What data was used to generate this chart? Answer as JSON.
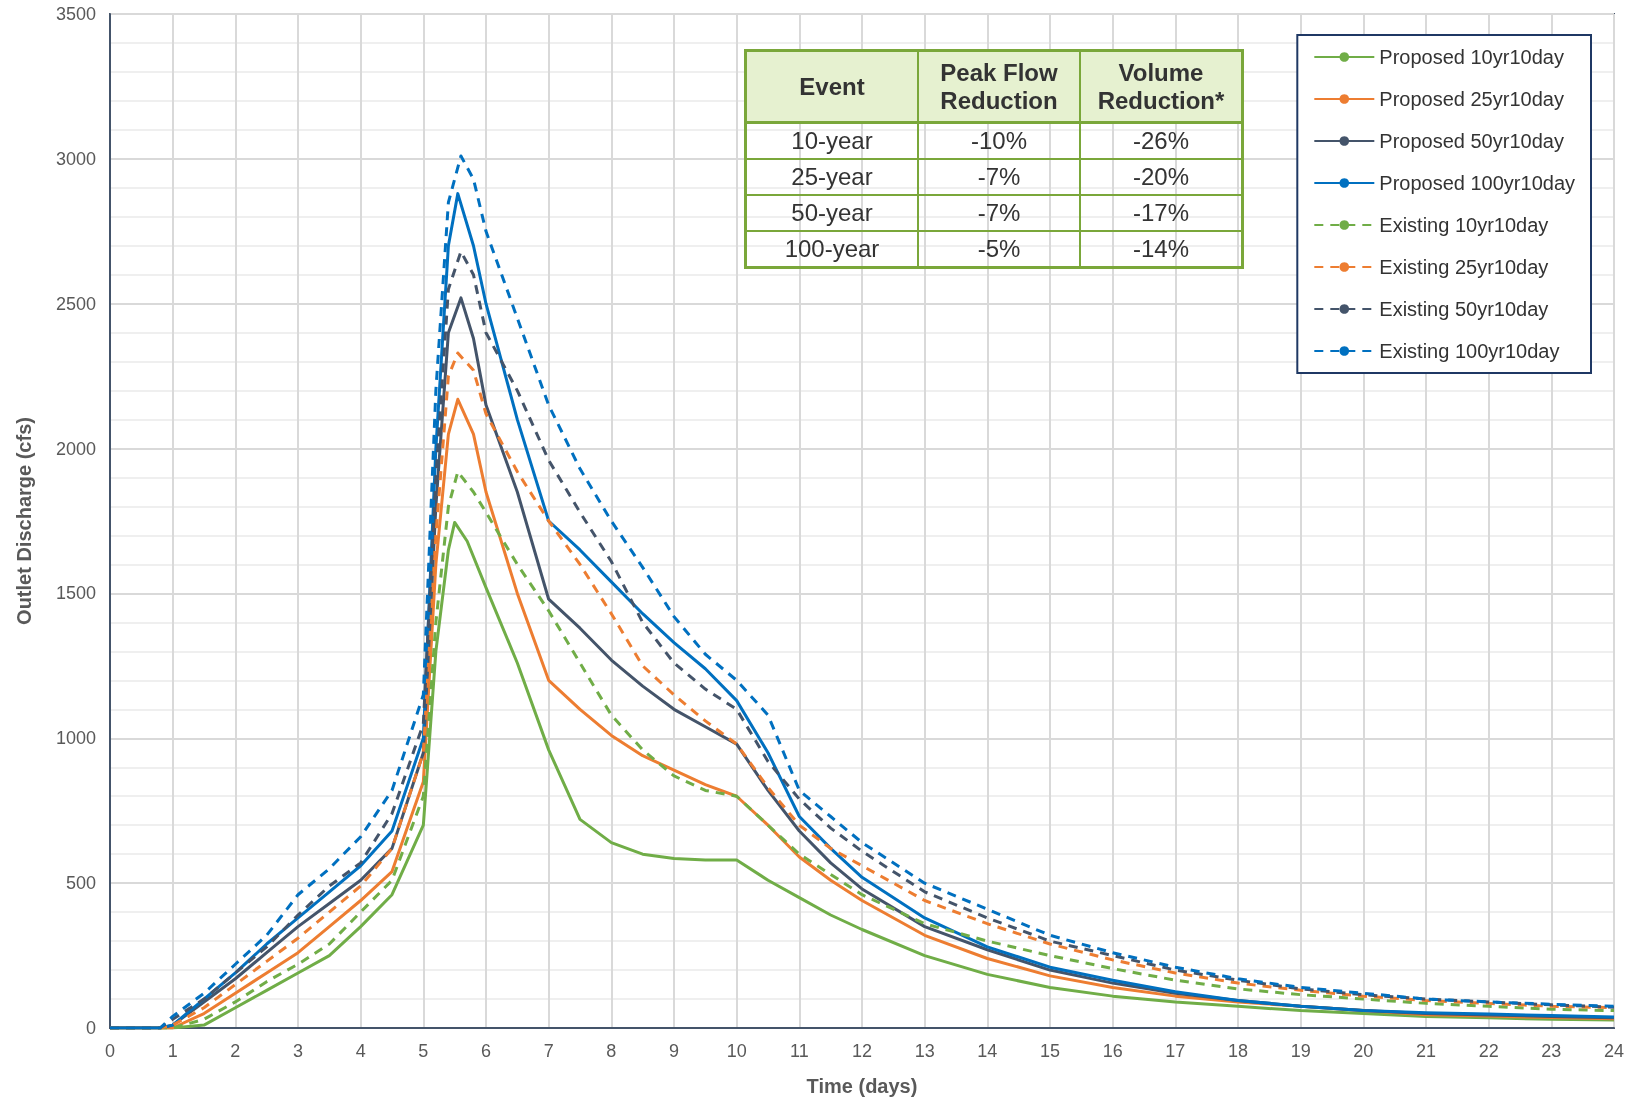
{
  "chart_data": {
    "type": "line",
    "xlabel": "Time (days)",
    "ylabel": "Outlet Discharge (cfs)",
    "xlim": [
      0,
      24
    ],
    "xticks": [
      0,
      1,
      2,
      3,
      4,
      5,
      6,
      7,
      8,
      9,
      10,
      11,
      12,
      13,
      14,
      15,
      16,
      17,
      18,
      19,
      20,
      21,
      22,
      23,
      24
    ],
    "ylim": [
      0,
      3500
    ],
    "yticks": [
      0,
      500,
      1000,
      1500,
      2000,
      2500,
      3000,
      3500
    ],
    "grid": true,
    "legend": "top right",
    "marker": "none",
    "annotations": [
      "Event",
      "Peak Flow Reduction",
      "Volume Reduction*",
      "10-year",
      "-10%",
      "-26%",
      "25-year",
      "-7%",
      "-20%",
      "50-year",
      "-7%",
      "-17%",
      "100-year",
      "-5%",
      "-14%"
    ],
    "series": [
      {
        "name": "Proposed 10yr10day",
        "color": "#70ad47",
        "line_style": "solid",
        "x": [
          0,
          0.8,
          1,
          1.5,
          2,
          2.5,
          3,
          3.5,
          4,
          4.5,
          5,
          5.2,
          5.4,
          5.5,
          5.7,
          6,
          6.5,
          7,
          7.5,
          8,
          8.5,
          9,
          9.5,
          10,
          10.5,
          11,
          11.5,
          12,
          13,
          14,
          15,
          16,
          17,
          18,
          19,
          20,
          21,
          22,
          23,
          24
        ],
        "values": [
          0,
          0,
          0,
          10,
          70,
          130,
          190,
          250,
          350,
          460,
          700,
          1300,
          1650,
          1745,
          1680,
          1520,
          1260,
          960,
          720,
          640,
          600,
          585,
          580,
          580,
          510,
          450,
          390,
          340,
          250,
          185,
          140,
          110,
          90,
          75,
          60,
          50,
          40,
          35,
          30,
          28
        ]
      },
      {
        "name": "Proposed 25yr10day",
        "color": "#ed7d31",
        "line_style": "solid",
        "x": [
          0,
          0.8,
          1,
          1.5,
          2,
          2.5,
          3,
          3.5,
          4,
          4.5,
          5,
          5.2,
          5.4,
          5.55,
          5.8,
          6,
          6.5,
          7,
          7.5,
          8,
          8.5,
          9,
          9.5,
          10,
          10.5,
          11,
          11.5,
          12,
          13,
          14,
          15,
          16,
          17,
          18,
          19,
          20,
          21,
          22,
          23,
          24
        ],
        "values": [
          0,
          0,
          0,
          50,
          120,
          190,
          260,
          350,
          440,
          540,
          850,
          1600,
          2050,
          2170,
          2050,
          1850,
          1500,
          1200,
          1100,
          1010,
          940,
          890,
          840,
          800,
          700,
          590,
          510,
          440,
          320,
          240,
          180,
          140,
          110,
          90,
          75,
          60,
          46,
          41,
          36,
          32
        ]
      },
      {
        "name": "Proposed 50yr10day",
        "color": "#44546a",
        "line_style": "solid",
        "x": [
          0,
          0.8,
          1,
          1.5,
          2,
          2.5,
          3,
          3.5,
          4,
          4.5,
          5,
          5.2,
          5.4,
          5.6,
          5.8,
          6,
          6.5,
          7,
          7.5,
          8,
          8.5,
          9,
          9.5,
          10,
          10.5,
          11,
          11.5,
          12,
          13,
          14,
          15,
          16,
          17,
          18,
          19,
          20,
          21,
          22,
          23,
          24
        ],
        "values": [
          0,
          0,
          10,
          90,
          170,
          260,
          350,
          430,
          510,
          620,
          950,
          1800,
          2400,
          2520,
          2380,
          2150,
          1850,
          1480,
          1380,
          1270,
          1180,
          1100,
          1040,
          980,
          820,
          680,
          570,
          480,
          350,
          270,
          200,
          155,
          120,
          95,
          75,
          60,
          50,
          45,
          40,
          35
        ]
      },
      {
        "name": "Proposed 100yr10day",
        "color": "#0070c0",
        "line_style": "solid",
        "x": [
          0,
          0.8,
          1,
          1.5,
          2,
          2.5,
          3,
          3.5,
          4,
          4.5,
          5,
          5.2,
          5.4,
          5.55,
          5.8,
          6,
          6.5,
          7,
          7.5,
          8,
          8.5,
          9,
          9.5,
          10,
          10.5,
          11,
          11.5,
          12,
          13,
          14,
          15,
          16,
          17,
          18,
          19,
          20,
          21,
          22,
          23,
          24
        ],
        "values": [
          0,
          0,
          10,
          100,
          190,
          290,
          380,
          470,
          560,
          680,
          1000,
          2000,
          2700,
          2880,
          2700,
          2500,
          2100,
          1750,
          1650,
          1540,
          1430,
          1330,
          1240,
          1130,
          950,
          730,
          620,
          520,
          380,
          280,
          210,
          165,
          125,
          95,
          75,
          60,
          53,
          48,
          43,
          38
        ]
      },
      {
        "name": "Existing 10yr10day",
        "color": "#70ad47",
        "line_style": "dashed",
        "x": [
          0,
          0.8,
          1,
          1.5,
          2,
          2.5,
          3,
          3.5,
          4,
          4.5,
          5,
          5.2,
          5.4,
          5.55,
          5.8,
          6,
          6.5,
          7,
          7.5,
          8,
          8.5,
          9,
          9.5,
          10,
          10.5,
          11,
          11.5,
          12,
          13,
          14,
          15,
          16,
          17,
          18,
          19,
          20,
          21,
          22,
          23,
          24
        ],
        "values": [
          0,
          0,
          0,
          30,
          90,
          160,
          220,
          290,
          400,
          510,
          800,
          1400,
          1800,
          1920,
          1850,
          1780,
          1600,
          1440,
          1260,
          1080,
          960,
          870,
          820,
          800,
          700,
          600,
          530,
          460,
          360,
          300,
          250,
          205,
          165,
          135,
          115,
          100,
          85,
          75,
          65,
          60
        ]
      },
      {
        "name": "Existing 25yr10day",
        "color": "#ed7d31",
        "line_style": "dashed",
        "x": [
          0,
          0.8,
          1,
          1.5,
          2,
          2.5,
          3,
          3.5,
          4,
          4.5,
          5,
          5.2,
          5.4,
          5.55,
          5.8,
          6,
          6.5,
          7,
          7.5,
          8,
          8.5,
          9,
          9.5,
          10,
          10.5,
          11,
          11.5,
          12,
          13,
          14,
          15,
          16,
          17,
          18,
          19,
          20,
          21,
          22,
          23,
          24
        ],
        "values": [
          0,
          0,
          10,
          70,
          150,
          230,
          310,
          400,
          490,
          620,
          950,
          1700,
          2250,
          2330,
          2270,
          2120,
          1920,
          1750,
          1600,
          1430,
          1250,
          1150,
          1060,
          980,
          830,
          700,
          620,
          560,
          440,
          360,
          290,
          235,
          190,
          155,
          130,
          110,
          95,
          85,
          75,
          70
        ]
      },
      {
        "name": "Existing 50yr10day",
        "color": "#44546a",
        "line_style": "dashed",
        "x": [
          0,
          0.8,
          1,
          1.5,
          2,
          2.5,
          3,
          3.5,
          4,
          4.5,
          5,
          5.2,
          5.4,
          5.6,
          5.8,
          6,
          6.5,
          7,
          7.5,
          8,
          8.5,
          9,
          9.5,
          10,
          10.5,
          11,
          11.5,
          12,
          13,
          14,
          15,
          16,
          17,
          18,
          19,
          20,
          21,
          22,
          23,
          24
        ],
        "values": [
          0,
          0,
          30,
          100,
          190,
          280,
          390,
          490,
          570,
          740,
          1050,
          1900,
          2550,
          2680,
          2600,
          2400,
          2200,
          1960,
          1780,
          1610,
          1400,
          1260,
          1170,
          1100,
          920,
          790,
          690,
          610,
          470,
          380,
          300,
          250,
          200,
          165,
          135,
          115,
          100,
          90,
          80,
          72
        ]
      },
      {
        "name": "Existing 100yr10day",
        "color": "#0070c0",
        "line_style": "dashed",
        "x": [
          0,
          0.8,
          1,
          1.5,
          2,
          2.5,
          3,
          3.5,
          4,
          4.5,
          5,
          5.2,
          5.4,
          5.6,
          5.8,
          6,
          6.5,
          7,
          7.5,
          8,
          8.5,
          9,
          9.5,
          10,
          10.5,
          11,
          11.5,
          12,
          13,
          14,
          15,
          16,
          17,
          18,
          19,
          20,
          21,
          22,
          23,
          24
        ],
        "values": [
          0,
          0,
          40,
          120,
          220,
          320,
          460,
          550,
          660,
          820,
          1150,
          2200,
          2850,
          3010,
          2930,
          2750,
          2450,
          2150,
          1930,
          1750,
          1590,
          1420,
          1290,
          1200,
          1080,
          820,
          730,
          640,
          500,
          410,
          320,
          260,
          210,
          170,
          140,
          120,
          100,
          90,
          82,
          75
        ]
      }
    ]
  }
}
